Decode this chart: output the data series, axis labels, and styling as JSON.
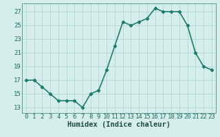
{
  "x": [
    0,
    1,
    2,
    3,
    4,
    5,
    6,
    7,
    8,
    9,
    10,
    11,
    12,
    13,
    14,
    15,
    16,
    17,
    18,
    19,
    20,
    21,
    22,
    23
  ],
  "y": [
    17,
    17,
    16,
    15,
    14,
    14,
    14,
    13,
    15,
    15.5,
    18.5,
    22,
    25.5,
    25,
    25.5,
    26,
    27.5,
    27,
    27,
    27,
    25,
    21,
    19,
    18.5
  ],
  "line_color": "#1e7b6e",
  "marker": "D",
  "marker_size": 2.2,
  "bg_color": "#d5eeeb",
  "grid_color": "#afd8d2",
  "xlabel": "Humidex (Indice chaleur)",
  "xlabel_fontsize": 7.5,
  "ytick_labels": [
    "13",
    "15",
    "17",
    "19",
    "21",
    "23",
    "25",
    "27"
  ],
  "ytick_values": [
    13,
    15,
    17,
    19,
    21,
    23,
    25,
    27
  ],
  "ylim": [
    12.2,
    28.2
  ],
  "xlim": [
    -0.5,
    23.5
  ],
  "tick_fontsize": 6.5,
  "line_width": 1.2
}
